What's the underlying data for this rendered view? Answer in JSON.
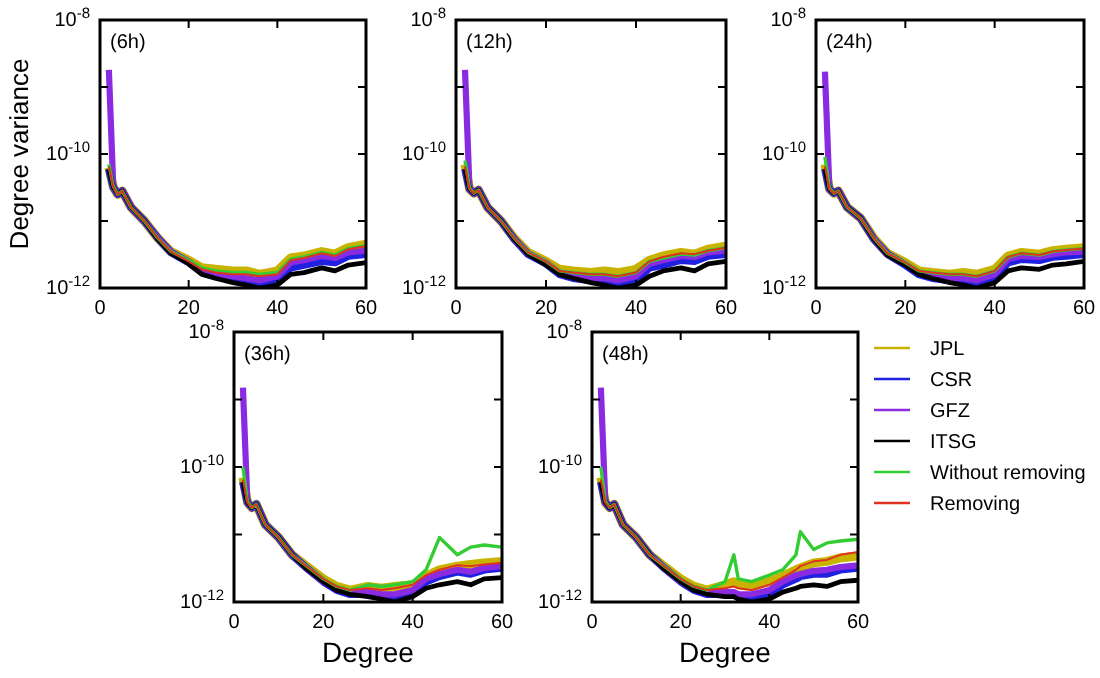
{
  "chart_data": [
    {
      "type": "line",
      "title": "(6h)",
      "ylabel": "Degree variance",
      "log": "y",
      "legend": false,
      "grid": false,
      "x": [
        2,
        3,
        4,
        5,
        7,
        10,
        13,
        16,
        20,
        23,
        26,
        30,
        33,
        36,
        40,
        43,
        46,
        50,
        53,
        56,
        60
      ],
      "xlim": [
        0,
        60
      ],
      "xticks": [
        0,
        20,
        40,
        60
      ],
      "ylim": [
        1e-12,
        1e-08
      ],
      "yticks": [
        {
          "value": 1e-12,
          "label": "10$^{-12}$"
        },
        {
          "value": 1e-11,
          "label": null
        },
        {
          "value": 1e-10,
          "label": "10$^{-10}$"
        },
        {
          "value": 1e-09,
          "label": null
        },
        {
          "value": 1e-08,
          "label": "10$^{-8}$"
        }
      ],
      "series": [
        {
          "color": "#c8b400",
          "values": [
            6.3e-11,
            3.2e-11,
            2.5e-11,
            2.8e-11,
            1.6e-11,
            1e-11,
            5.6e-12,
            3.5e-12,
            2.6e-12,
            2e-12,
            1.9e-12,
            1.8e-12,
            1.8e-12,
            1.6e-12,
            1.8e-12,
            2.8e-12,
            3e-12,
            3.5e-12,
            3.2e-12,
            4e-12,
            4.5e-12
          ]
        },
        {
          "color": "#2020e0",
          "values": [
            6e-11,
            3.2e-11,
            2.5e-11,
            2.8e-11,
            1.6e-11,
            1e-11,
            5.6e-12,
            3.4e-12,
            2.4e-12,
            1.7e-12,
            1.5e-12,
            1.3e-12,
            1.2e-12,
            1.1e-12,
            1.3e-12,
            2e-12,
            2.2e-12,
            2.5e-12,
            2.4e-12,
            3e-12,
            3.2e-12
          ]
        },
        {
          "color": "#8a2be2",
          "values": [
            1.8e-09,
            3.2e-11,
            2.5e-11,
            2.8e-11,
            1.6e-11,
            1e-11,
            5.6e-12,
            3.4e-12,
            2.5e-12,
            1.8e-12,
            1.6e-12,
            1.5e-12,
            1.4e-12,
            1.3e-12,
            1.5e-12,
            2.4e-12,
            2.6e-12,
            3e-12,
            2.8e-12,
            3.4e-12,
            3.6e-12
          ]
        },
        {
          "color": "#000000",
          "values": [
            6e-11,
            3.2e-11,
            2.5e-11,
            2.8e-11,
            1.6e-11,
            1e-11,
            5.4e-12,
            3.3e-12,
            2.3e-12,
            1.6e-12,
            1.4e-12,
            1.2e-12,
            1.1e-12,
            1e-12,
            1.1e-12,
            1.6e-12,
            1.7e-12,
            2e-12,
            1.8e-12,
            2.2e-12,
            2.4e-12
          ]
        },
        {
          "color": "#33cc33",
          "values": [
            7e-11,
            3.3e-11,
            2.5e-11,
            2.8e-11,
            1.6e-11,
            1e-11,
            5.6e-12,
            3.5e-12,
            2.6e-12,
            2e-12,
            1.8e-12,
            1.7e-12,
            1.7e-12,
            1.6e-12,
            1.7e-12,
            2.7e-12,
            2.9e-12,
            3.4e-12,
            3.1e-12,
            3.9e-12,
            4.3e-12
          ]
        },
        {
          "color": "#e03020",
          "values": [
            6.5e-11,
            3.2e-11,
            2.5e-11,
            2.8e-11,
            1.6e-11,
            1e-11,
            5.6e-12,
            3.5e-12,
            2.5e-12,
            1.9e-12,
            1.7e-12,
            1.6e-12,
            1.6e-12,
            1.5e-12,
            1.6e-12,
            2.6e-12,
            2.8e-12,
            3.3e-12,
            3e-12,
            3.8e-12,
            4.2e-12
          ]
        }
      ]
    },
    {
      "type": "line",
      "title": "(12h)",
      "log": "y",
      "legend": false,
      "grid": false,
      "x": [
        2,
        3,
        4,
        5,
        7,
        10,
        13,
        16,
        20,
        23,
        26,
        30,
        33,
        36,
        40,
        43,
        46,
        50,
        53,
        56,
        60
      ],
      "xlim": [
        0,
        60
      ],
      "xticks": [
        0,
        20,
        40,
        60
      ],
      "ylim": [
        1e-12,
        1e-08
      ],
      "yticks": [
        {
          "value": 1e-12,
          "label": "10$^{-12}$"
        },
        {
          "value": 1e-11,
          "label": null
        },
        {
          "value": 1e-10,
          "label": "10$^{-10}$"
        },
        {
          "value": 1e-09,
          "label": null
        },
        {
          "value": 1e-08,
          "label": "10$^{-8}$"
        }
      ],
      "series": [
        {
          "color": "#c8b400",
          "values": [
            7e-11,
            3e-11,
            2.6e-11,
            2.9e-11,
            1.6e-11,
            1e-11,
            5.5e-12,
            3.4e-12,
            2.5e-12,
            1.9e-12,
            1.8e-12,
            1.7e-12,
            1.8e-12,
            1.7e-12,
            1.9e-12,
            2.6e-12,
            3e-12,
            3.4e-12,
            3.2e-12,
            3.8e-12,
            4.2e-12
          ]
        },
        {
          "color": "#2020e0",
          "values": [
            6e-11,
            3e-11,
            2.6e-11,
            2.9e-11,
            1.6e-11,
            1e-11,
            5.3e-12,
            3.2e-12,
            2.3e-12,
            1.6e-12,
            1.4e-12,
            1.3e-12,
            1.2e-12,
            1.1e-12,
            1.3e-12,
            2e-12,
            2.2e-12,
            2.6e-12,
            2.5e-12,
            3e-12,
            3.2e-12
          ]
        },
        {
          "color": "#8a2be2",
          "values": [
            1.8e-09,
            3e-11,
            2.6e-11,
            2.9e-11,
            1.6e-11,
            1e-11,
            5.4e-12,
            3.3e-12,
            2.4e-12,
            1.7e-12,
            1.5e-12,
            1.4e-12,
            1.4e-12,
            1.3e-12,
            1.5e-12,
            2.3e-12,
            2.6e-12,
            3e-12,
            2.9e-12,
            3.4e-12,
            3.6e-12
          ]
        },
        {
          "color": "#000000",
          "values": [
            6e-11,
            3e-11,
            2.6e-11,
            2.9e-11,
            1.6e-11,
            1e-11,
            5.3e-12,
            3.2e-12,
            2.2e-12,
            1.6e-12,
            1.4e-12,
            1.2e-12,
            1.1e-12,
            1e-12,
            1.1e-12,
            1.5e-12,
            1.8e-12,
            2e-12,
            1.8e-12,
            2.3e-12,
            2.5e-12
          ]
        },
        {
          "color": "#33cc33",
          "values": [
            8e-11,
            3.1e-11,
            2.6e-11,
            2.9e-11,
            1.6e-11,
            1e-11,
            5.5e-12,
            3.4e-12,
            2.5e-12,
            1.8e-12,
            1.7e-12,
            1.6e-12,
            1.6e-12,
            1.5e-12,
            1.7e-12,
            2.5e-12,
            2.8e-12,
            3.2e-12,
            3.1e-12,
            3.6e-12,
            4e-12
          ]
        },
        {
          "color": "#e03020",
          "values": [
            6.5e-11,
            3e-11,
            2.6e-11,
            2.9e-11,
            1.6e-11,
            1e-11,
            5.5e-12,
            3.4e-12,
            2.5e-12,
            1.8e-12,
            1.7e-12,
            1.6e-12,
            1.6e-12,
            1.5e-12,
            1.7e-12,
            2.5e-12,
            2.9e-12,
            3.3e-12,
            3.2e-12,
            3.6e-12,
            4e-12
          ]
        }
      ]
    },
    {
      "type": "line",
      "title": "(24h)",
      "log": "y",
      "legend": false,
      "grid": false,
      "x": [
        2,
        3,
        4,
        5,
        7,
        10,
        13,
        16,
        20,
        23,
        26,
        30,
        33,
        36,
        40,
        43,
        46,
        50,
        53,
        56,
        60
      ],
      "xlim": [
        0,
        60
      ],
      "xticks": [
        0,
        20,
        40,
        60
      ],
      "ylim": [
        1e-12,
        1e-08
      ],
      "yticks": [
        {
          "value": 1e-12,
          "label": "10$^{-12}$"
        },
        {
          "value": 1e-11,
          "label": null
        },
        {
          "value": 1e-10,
          "label": "10$^{-10}$"
        },
        {
          "value": 1e-09,
          "label": null
        },
        {
          "value": 1e-08,
          "label": "10$^{-8}$"
        }
      ],
      "series": [
        {
          "color": "#c8b400",
          "values": [
            7e-11,
            3e-11,
            2.6e-11,
            2.8e-11,
            1.6e-11,
            1.1e-11,
            5.5e-12,
            3.3e-12,
            2.4e-12,
            1.8e-12,
            1.7e-12,
            1.6e-12,
            1.7e-12,
            1.6e-12,
            1.9e-12,
            3e-12,
            3.4e-12,
            3.2e-12,
            3.6e-12,
            3.8e-12,
            4e-12
          ]
        },
        {
          "color": "#2020e0",
          "values": [
            6e-11,
            3e-11,
            2.6e-11,
            2.8e-11,
            1.6e-11,
            1.1e-11,
            5.3e-12,
            3.2e-12,
            2.2e-12,
            1.6e-12,
            1.4e-12,
            1.3e-12,
            1.2e-12,
            1.1e-12,
            1.4e-12,
            2.4e-12,
            2.7e-12,
            2.6e-12,
            2.9e-12,
            3e-12,
            3.2e-12
          ]
        },
        {
          "color": "#8a2be2",
          "values": [
            1.7e-09,
            3e-11,
            2.6e-11,
            2.8e-11,
            1.6e-11,
            1.1e-11,
            5.4e-12,
            3.2e-12,
            2.3e-12,
            1.7e-12,
            1.5e-12,
            1.4e-12,
            1.4e-12,
            1.3e-12,
            1.6e-12,
            2.7e-12,
            3e-12,
            2.9e-12,
            3.2e-12,
            3.4e-12,
            3.5e-12
          ]
        },
        {
          "color": "#000000",
          "values": [
            6e-11,
            3e-11,
            2.6e-11,
            2.8e-11,
            1.6e-11,
            1.1e-11,
            5.3e-12,
            3.1e-12,
            2.2e-12,
            1.6e-12,
            1.4e-12,
            1.2e-12,
            1.1e-12,
            1e-12,
            1.2e-12,
            1.8e-12,
            2e-12,
            1.9e-12,
            2.2e-12,
            2.3e-12,
            2.5e-12
          ]
        },
        {
          "color": "#33cc33",
          "values": [
            9e-11,
            3.1e-11,
            2.6e-11,
            2.8e-11,
            1.6e-11,
            1.1e-11,
            5.5e-12,
            3.3e-12,
            2.4e-12,
            1.8e-12,
            1.7e-12,
            1.6e-12,
            1.6e-12,
            1.5e-12,
            1.8e-12,
            2.9e-12,
            3.3e-12,
            3.1e-12,
            3.5e-12,
            3.7e-12,
            3.9e-12
          ]
        },
        {
          "color": "#e03020",
          "values": [
            6.5e-11,
            3e-11,
            2.6e-11,
            2.8e-11,
            1.6e-11,
            1.1e-11,
            5.5e-12,
            3.3e-12,
            2.4e-12,
            1.8e-12,
            1.7e-12,
            1.6e-12,
            1.6e-12,
            1.5e-12,
            1.8e-12,
            2.9e-12,
            3.3e-12,
            3.1e-12,
            3.5e-12,
            3.7e-12,
            3.9e-12
          ]
        }
      ]
    },
    {
      "type": "line",
      "title": "(36h)",
      "xlabel": "Degree",
      "log": "y",
      "legend": false,
      "grid": false,
      "x": [
        2,
        3,
        4,
        5,
        7,
        10,
        13,
        16,
        20,
        23,
        26,
        30,
        33,
        36,
        40,
        43,
        46,
        50,
        53,
        56,
        60
      ],
      "xlim": [
        0,
        60
      ],
      "xticks": [
        0,
        20,
        40,
        60
      ],
      "ylim": [
        1e-12,
        1e-08
      ],
      "yticks": [
        {
          "value": 1e-12,
          "label": "10$^{-12}$"
        },
        {
          "value": 1e-11,
          "label": null
        },
        {
          "value": 1e-10,
          "label": "10$^{-10}$"
        },
        {
          "value": 1e-09,
          "label": null
        },
        {
          "value": 1e-08,
          "label": "10$^{-8}$"
        }
      ],
      "series": [
        {
          "color": "#c8b400",
          "values": [
            7e-11,
            3e-11,
            2.5e-11,
            2.8e-11,
            1.4e-11,
            9e-12,
            5e-12,
            3.5e-12,
            2.2e-12,
            1.7e-12,
            1.5e-12,
            1.7e-12,
            1.6e-12,
            1.7e-12,
            1.8e-12,
            2.4e-12,
            3e-12,
            3.4e-12,
            3.6e-12,
            3.8e-12,
            4e-12
          ]
        },
        {
          "color": "#2020e0",
          "values": [
            6e-11,
            3e-11,
            2.5e-11,
            2.8e-11,
            1.4e-11,
            9e-12,
            5e-12,
            3.3e-12,
            2e-12,
            1.5e-12,
            1.3e-12,
            1.3e-12,
            1.2e-12,
            1.1e-12,
            1.4e-12,
            2e-12,
            2.4e-12,
            2.8e-12,
            2.6e-12,
            3e-12,
            3.2e-12
          ]
        },
        {
          "color": "#8a2be2",
          "values": [
            1.5e-09,
            3e-11,
            2.5e-11,
            2.8e-11,
            1.4e-11,
            9e-12,
            5e-12,
            3.3e-12,
            2e-12,
            1.6e-12,
            1.4e-12,
            1.4e-12,
            1.3e-12,
            1.3e-12,
            1.5e-12,
            2.2e-12,
            2.6e-12,
            3e-12,
            2.8e-12,
            3.2e-12,
            3.4e-12
          ]
        },
        {
          "color": "#000000",
          "values": [
            6e-11,
            3e-11,
            2.5e-11,
            2.8e-11,
            1.4e-11,
            9e-12,
            5e-12,
            3.2e-12,
            2e-12,
            1.5e-12,
            1.3e-12,
            1.2e-12,
            1.1e-12,
            1e-12,
            1.2e-12,
            1.6e-12,
            1.8e-12,
            2e-12,
            1.8e-12,
            2.2e-12,
            2.3e-12
          ]
        },
        {
          "color": "#33cc33",
          "values": [
            1e-10,
            3.1e-11,
            2.5e-11,
            2.8e-11,
            1.4e-11,
            9e-12,
            5e-12,
            3.5e-12,
            2.2e-12,
            1.7e-12,
            1.5e-12,
            1.8e-12,
            1.7e-12,
            1.8e-12,
            2e-12,
            3e-12,
            9e-12,
            5e-12,
            6.5e-12,
            7e-12,
            6.5e-12
          ]
        },
        {
          "color": "#e03020",
          "values": [
            6.5e-11,
            3e-11,
            2.5e-11,
            2.8e-11,
            1.4e-11,
            9e-12,
            5e-12,
            3.5e-12,
            2.2e-12,
            1.7e-12,
            1.5e-12,
            1.6e-12,
            1.5e-12,
            1.6e-12,
            1.8e-12,
            2.5e-12,
            3e-12,
            3.5e-12,
            3.4e-12,
            3.6e-12,
            3.8e-12
          ]
        }
      ]
    },
    {
      "type": "line",
      "title": "(48h)",
      "xlabel": "Degree",
      "log": "y",
      "legend": "right",
      "grid": false,
      "x": [
        2,
        3,
        4,
        5,
        7,
        10,
        13,
        16,
        20,
        23,
        26,
        30,
        32,
        33,
        36,
        40,
        43,
        46,
        47,
        50,
        53,
        56,
        60
      ],
      "xlim": [
        0,
        60
      ],
      "xticks": [
        0,
        20,
        40,
        60
      ],
      "ylim": [
        1e-12,
        1e-08
      ],
      "yticks": [
        {
          "value": 1e-12,
          "label": "10$^{-12}$"
        },
        {
          "value": 1e-11,
          "label": null
        },
        {
          "value": 1e-10,
          "label": "10$^{-10}$"
        },
        {
          "value": 1e-09,
          "label": null
        },
        {
          "value": 1e-08,
          "label": "10$^{-8}$"
        }
      ],
      "series": [
        {
          "name": "JPL",
          "color": "#c8b400",
          "values": [
            7e-11,
            3e-11,
            2.5e-11,
            2.8e-11,
            1.4e-11,
            9e-12,
            5e-12,
            3.5e-12,
            2.2e-12,
            1.7e-12,
            1.5e-12,
            1.8e-12,
            2e-12,
            1.8e-12,
            1.7e-12,
            2e-12,
            2.4e-12,
            3e-12,
            3.2e-12,
            3.8e-12,
            4e-12,
            4.5e-12,
            4.8e-12
          ]
        },
        {
          "name": "CSR",
          "color": "#2020e0",
          "values": [
            6e-11,
            3e-11,
            2.5e-11,
            2.8e-11,
            1.4e-11,
            9e-12,
            5e-12,
            3.3e-12,
            2e-12,
            1.5e-12,
            1.3e-12,
            1.3e-12,
            1.3e-12,
            1.2e-12,
            1.1e-12,
            1.3e-12,
            1.8e-12,
            2.2e-12,
            2.4e-12,
            2.6e-12,
            2.6e-12,
            3e-12,
            3.2e-12
          ]
        },
        {
          "name": "GFZ",
          "color": "#8a2be2",
          "values": [
            1.5e-09,
            3e-11,
            2.5e-11,
            2.8e-11,
            1.4e-11,
            9e-12,
            5e-12,
            3.3e-12,
            2e-12,
            1.6e-12,
            1.4e-12,
            1.4e-12,
            1.4e-12,
            1.3e-12,
            1.3e-12,
            1.5e-12,
            2e-12,
            2.5e-12,
            2.6e-12,
            2.9e-12,
            3e-12,
            3.3e-12,
            3.5e-12
          ]
        },
        {
          "name": "ITSG",
          "color": "#000000",
          "values": [
            6e-11,
            3e-11,
            2.5e-11,
            2.8e-11,
            1.4e-11,
            9e-12,
            5e-12,
            3.2e-12,
            2e-12,
            1.5e-12,
            1.3e-12,
            1.2e-12,
            1.2e-12,
            1.1e-12,
            1e-12,
            1.1e-12,
            1.4e-12,
            1.6e-12,
            1.7e-12,
            1.8e-12,
            1.7e-12,
            2e-12,
            2.1e-12
          ]
        },
        {
          "name": "Without removing",
          "color": "#33cc33",
          "values": [
            1e-10,
            3.1e-11,
            2.5e-11,
            2.8e-11,
            1.4e-11,
            9e-12,
            5e-12,
            3.5e-12,
            2.2e-12,
            1.7e-12,
            1.5e-12,
            2e-12,
            5e-12,
            2.2e-12,
            2e-12,
            2.5e-12,
            3e-12,
            5e-12,
            1.1e-11,
            6e-12,
            7.5e-12,
            8e-12,
            8.5e-12
          ]
        },
        {
          "name": "Removing",
          "color": "#e03020",
          "values": [
            6.5e-11,
            3e-11,
            2.5e-11,
            2.8e-11,
            1.4e-11,
            9e-12,
            5e-12,
            3.5e-12,
            2.2e-12,
            1.7e-12,
            1.5e-12,
            1.6e-12,
            1.7e-12,
            1.6e-12,
            1.5e-12,
            1.8e-12,
            2.3e-12,
            3e-12,
            3.4e-12,
            4e-12,
            4.2e-12,
            5e-12,
            5.5e-12
          ]
        }
      ]
    }
  ]
}
